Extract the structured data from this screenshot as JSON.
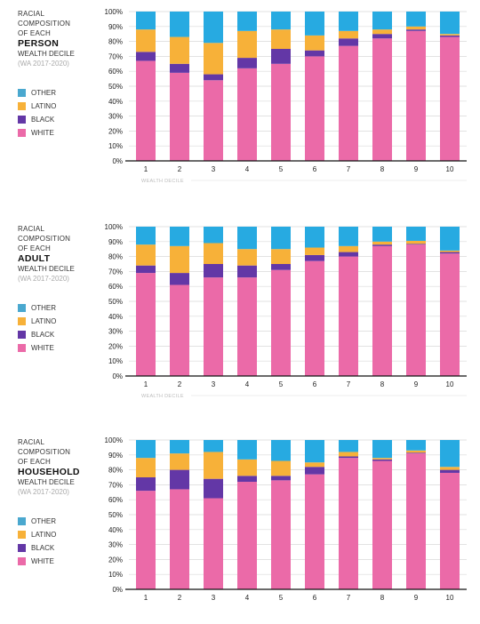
{
  "colors": {
    "other": "#27aae1",
    "latino": "#f7b139",
    "black": "#6337a6",
    "white": "#eb6aa8",
    "grid": "#d9d9d9",
    "axis": "#111111"
  },
  "legend": [
    {
      "key": "other",
      "label": "OTHER",
      "color": "#4aa8cf"
    },
    {
      "key": "latino",
      "label": "LATINO",
      "color": "#f7b139"
    },
    {
      "key": "black",
      "label": "BLACK",
      "color": "#6337a6"
    },
    {
      "key": "white",
      "label": "WHITE",
      "color": "#eb6aa8"
    }
  ],
  "panels": [
    {
      "line1": "RACIAL",
      "line2": "COMPOSITION",
      "line3": "OF EACH",
      "unit": "PERSON",
      "line5": "WEALTH DECILE",
      "years": "(WA 2017-2020)",
      "xlabel": "WEALTH DECILE"
    },
    {
      "line1": "RACIAL",
      "line2": "COMPOSITION",
      "line3": "OF EACH",
      "unit": "ADULT",
      "line5": "WEALTH DECILE",
      "years": "(WA 2017-2020)",
      "xlabel": "WEALTH DECILE"
    },
    {
      "line1": "RACIAL",
      "line2": "COMPOSITION",
      "line3": "OF EACH",
      "unit": "HOUSEHOLD",
      "line5": "WEALTH DECILE",
      "years": "(WA 2017-2020)",
      "xlabel": ""
    }
  ],
  "chart_data": [
    {
      "type": "bar",
      "stacked": true,
      "xlabel": "WEALTH DECILE",
      "ylabel": "",
      "ylim": [
        0,
        100
      ],
      "yticks": [
        "0%",
        "10%",
        "20%",
        "30%",
        "40%",
        "50%",
        "60%",
        "70%",
        "80%",
        "90%",
        "100%"
      ],
      "categories": [
        "1",
        "2",
        "3",
        "4",
        "5",
        "6",
        "7",
        "8",
        "9",
        "10"
      ],
      "series": [
        {
          "name": "WHITE",
          "values": [
            67,
            59,
            54,
            62,
            65,
            70,
            77,
            82,
            87,
            83
          ]
        },
        {
          "name": "BLACK",
          "values": [
            6,
            6,
            4,
            7,
            10,
            4,
            5,
            3,
            1,
            1
          ]
        },
        {
          "name": "LATINO",
          "values": [
            15,
            18,
            21,
            18,
            13,
            10,
            5,
            3,
            2,
            1
          ]
        },
        {
          "name": "OTHER",
          "values": [
            12,
            17,
            21,
            13,
            12,
            16,
            13,
            12,
            10,
            15
          ]
        }
      ]
    },
    {
      "type": "bar",
      "stacked": true,
      "xlabel": "WEALTH DECILE",
      "ylabel": "",
      "ylim": [
        0,
        100
      ],
      "yticks": [
        "0%",
        "10%",
        "20%",
        "30%",
        "40%",
        "50%",
        "60%",
        "70%",
        "80%",
        "90%",
        "100%"
      ],
      "categories": [
        "1",
        "2",
        "3",
        "4",
        "5",
        "6",
        "7",
        "8",
        "9",
        "10"
      ],
      "series": [
        {
          "name": "WHITE",
          "values": [
            69,
            61,
            66,
            66,
            71,
            77,
            80,
            87,
            88,
            82
          ]
        },
        {
          "name": "BLACK",
          "values": [
            5,
            8,
            9,
            8,
            4,
            4,
            3,
            1,
            0.5,
            1
          ]
        },
        {
          "name": "LATINO",
          "values": [
            14,
            18,
            14,
            11,
            10,
            5,
            4,
            2,
            2,
            1
          ]
        },
        {
          "name": "OTHER",
          "values": [
            12,
            13,
            11,
            15,
            15,
            14,
            13,
            10,
            9.5,
            16
          ]
        }
      ]
    },
    {
      "type": "bar",
      "stacked": true,
      "xlabel": "",
      "ylabel": "",
      "ylim": [
        0,
        100
      ],
      "yticks": [
        "0%",
        "10%",
        "20%",
        "30%",
        "40%",
        "50%",
        "60%",
        "70%",
        "80%",
        "90%",
        "100%"
      ],
      "categories": [
        "1",
        "2",
        "3",
        "4",
        "5",
        "6",
        "7",
        "8",
        "9",
        "10"
      ],
      "series": [
        {
          "name": "WHITE",
          "values": [
            66,
            67,
            61,
            72,
            73,
            77,
            88,
            86,
            91,
            78
          ]
        },
        {
          "name": "BLACK",
          "values": [
            9,
            13,
            13,
            4,
            3,
            5,
            1,
            1,
            0.5,
            2
          ]
        },
        {
          "name": "LATINO",
          "values": [
            13,
            11,
            18,
            11,
            10,
            3,
            3,
            1,
            1.5,
            2
          ]
        },
        {
          "name": "OTHER",
          "values": [
            12,
            9,
            8,
            13,
            14,
            15,
            8,
            12,
            7,
            18
          ]
        }
      ]
    }
  ]
}
